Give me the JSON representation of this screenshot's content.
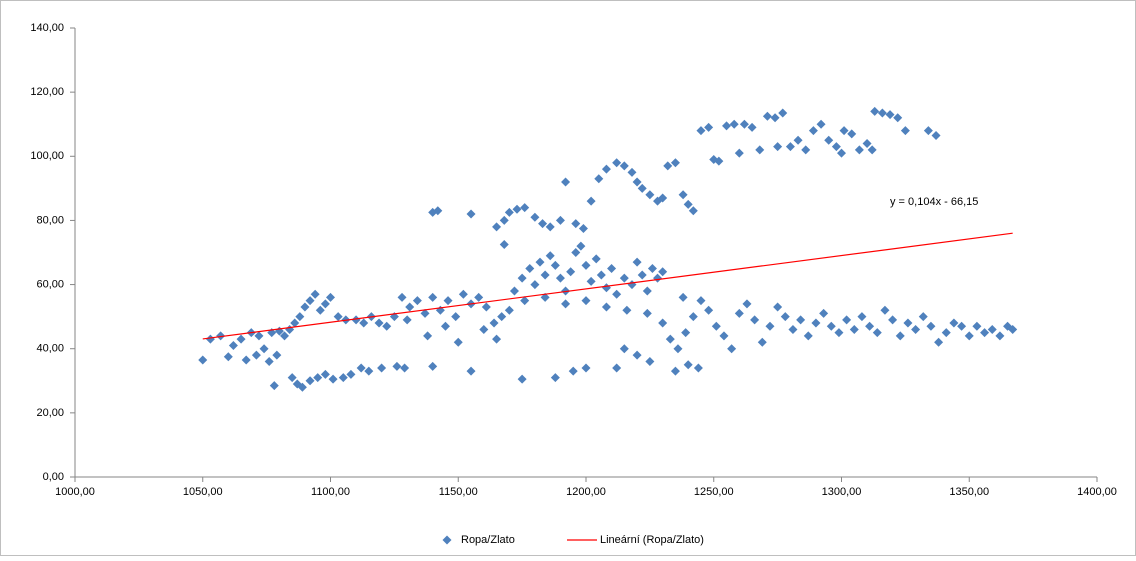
{
  "chart_data": {
    "type": "scatter",
    "xlim": [
      1000,
      1400
    ],
    "ylim": [
      0,
      140
    ],
    "xticks": [
      {
        "value": 1000,
        "label": "1000,00"
      },
      {
        "value": 1050,
        "label": "1050,00"
      },
      {
        "value": 1100,
        "label": "1100,00"
      },
      {
        "value": 1150,
        "label": "1150,00"
      },
      {
        "value": 1200,
        "label": "1200,00"
      },
      {
        "value": 1250,
        "label": "1250,00"
      },
      {
        "value": 1300,
        "label": "1300,00"
      },
      {
        "value": 1350,
        "label": "1350,00"
      },
      {
        "value": 1400,
        "label": "1400,00"
      }
    ],
    "yticks": [
      {
        "value": 0,
        "label": "0,00"
      },
      {
        "value": 20,
        "label": "20,00"
      },
      {
        "value": 40,
        "label": "40,00"
      },
      {
        "value": 60,
        "label": "60,00"
      },
      {
        "value": 80,
        "label": "80,00"
      },
      {
        "value": 100,
        "label": "100,00"
      },
      {
        "value": 120,
        "label": "120,00"
      },
      {
        "value": 140,
        "label": "140,00"
      }
    ],
    "grid": false,
    "legend": "bottom",
    "series": [
      {
        "name": "Ropa/Zlato",
        "color": "#4f81bd",
        "x": [
          1050,
          1053,
          1057,
          1060,
          1062,
          1065,
          1067,
          1069,
          1071,
          1072,
          1074,
          1076,
          1077,
          1079,
          1080,
          1082,
          1084,
          1086,
          1088,
          1090,
          1092,
          1094,
          1096,
          1098,
          1100,
          1078,
          1085,
          1087,
          1089,
          1092,
          1095,
          1098,
          1101,
          1105,
          1108,
          1112,
          1115,
          1120,
          1126,
          1129,
          1140,
          1155,
          1175,
          1188,
          1195,
          1200,
          1212,
          1103,
          1106,
          1110,
          1113,
          1116,
          1119,
          1122,
          1125,
          1128,
          1131,
          1134,
          1137,
          1140,
          1143,
          1146,
          1149,
          1152,
          1155,
          1158,
          1161,
          1164,
          1167,
          1170,
          1130,
          1145,
          1160,
          1138,
          1150,
          1165,
          1140,
          1142,
          1155,
          1165,
          1168,
          1170,
          1173,
          1176,
          1168,
          1180,
          1183,
          1186,
          1190,
          1192,
          1196,
          1199,
          1202,
          1172,
          1175,
          1178,
          1180,
          1182,
          1184,
          1186,
          1188,
          1190,
          1192,
          1194,
          1196,
          1198,
          1200,
          1202,
          1204,
          1206,
          1208,
          1210,
          1212,
          1215,
          1218,
          1220,
          1222,
          1224,
          1226,
          1228,
          1230,
          1176,
          1184,
          1192,
          1200,
          1208,
          1216,
          1224,
          1205,
          1208,
          1212,
          1215,
          1218,
          1220,
          1222,
          1225,
          1228,
          1230,
          1232,
          1235,
          1238,
          1240,
          1242,
          1245,
          1248,
          1250,
          1252,
          1255,
          1258,
          1262,
          1265,
          1268,
          1271,
          1274,
          1277,
          1280,
          1283,
          1286,
          1289,
          1292,
          1295,
          1298,
          1301,
          1304,
          1307,
          1310,
          1313,
          1316,
          1319,
          1322,
          1325,
          1334,
          1337,
          1260,
          1275,
          1300,
          1312,
          1230,
          1233,
          1236,
          1239,
          1242,
          1245,
          1248,
          1251,
          1254,
          1257,
          1260,
          1263,
          1266,
          1269,
          1272,
          1275,
          1278,
          1281,
          1284,
          1287,
          1290,
          1293,
          1296,
          1299,
          1302,
          1305,
          1308,
          1311,
          1314,
          1317,
          1320,
          1323,
          1326,
          1329,
          1332,
          1335,
          1338,
          1341,
          1344,
          1347,
          1350,
          1353,
          1356,
          1359,
          1362,
          1365,
          1367,
          1235,
          1240,
          1244,
          1238,
          1215,
          1220,
          1225
        ],
        "values": [
          36.5,
          43,
          44,
          37.5,
          41,
          43,
          36.5,
          45,
          38,
          44,
          40,
          36,
          45,
          38,
          45.5,
          44,
          46,
          48,
          50,
          53,
          55,
          57,
          52,
          54,
          56,
          28.5,
          31,
          29,
          28,
          30,
          31,
          32,
          30.5,
          31,
          32,
          34,
          33,
          34,
          34.5,
          34,
          34.5,
          33,
          30.5,
          31,
          33,
          34,
          34,
          50,
          49,
          49,
          48,
          50,
          48,
          47,
          50,
          56,
          53,
          55,
          51,
          56,
          52,
          55,
          50,
          57,
          54,
          56,
          53,
          48,
          50,
          52,
          49,
          47,
          46,
          44,
          42,
          43,
          82.5,
          83,
          82,
          78,
          80,
          82.5,
          83.5,
          84,
          72.5,
          81,
          79,
          78,
          80,
          92,
          79,
          77.5,
          86,
          58,
          62,
          65,
          60,
          67,
          63,
          69,
          66,
          62,
          58,
          64,
          70,
          72,
          66,
          61,
          68,
          63,
          59,
          65,
          57,
          62,
          60,
          67,
          63,
          58,
          65,
          62,
          64,
          55,
          56,
          54,
          55,
          53,
          52,
          51,
          93,
          96,
          98,
          97,
          95,
          92,
          90,
          88,
          86,
          87,
          97,
          98,
          88,
          85,
          83,
          108,
          109,
          99,
          98.5,
          109.5,
          110,
          110,
          109,
          102,
          112.5,
          112,
          113.5,
          103,
          105,
          102,
          108,
          110,
          105,
          103,
          108,
          107,
          102,
          104,
          114,
          113.5,
          113,
          112,
          108,
          108,
          106.5,
          101,
          103,
          101,
          102,
          48,
          43,
          40,
          45,
          50,
          55,
          52,
          47,
          44,
          40,
          51,
          54,
          49,
          42,
          47,
          53,
          50,
          46,
          49,
          44,
          48,
          51,
          47,
          45,
          49,
          46,
          50,
          47,
          45,
          52,
          49,
          44,
          48,
          46,
          50,
          47,
          42,
          45,
          48,
          47,
          44,
          47,
          45,
          46,
          44,
          47,
          46,
          33,
          35,
          34,
          56,
          40,
          38,
          36
        ]
      }
    ],
    "trendline": {
      "name": "Lineární (Ropa/Zlato)",
      "color": "#ff0000",
      "x": [
        1050,
        1367
      ],
      "values": [
        43.05,
        76.02
      ],
      "equation": "y = 0,104x - 66,15"
    }
  }
}
